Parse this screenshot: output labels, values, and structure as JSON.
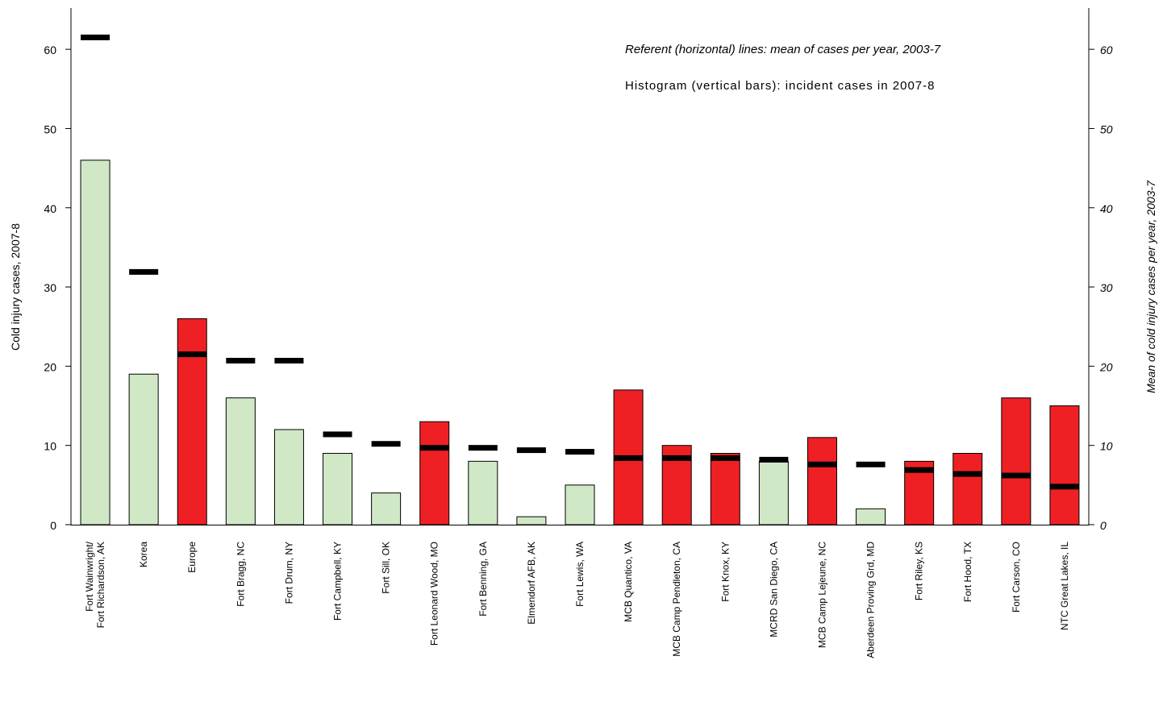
{
  "chart_data": {
    "type": "bar",
    "annotations": [
      "Referent (horizontal) lines: mean of cases per year, 2003-7",
      "Histogram (vertical bars): incident cases in 2007-8"
    ],
    "ylabel": "Cold injury cases, 2007-8",
    "y2label": "Mean of cold injury cases per year, 2003-7",
    "categories": [
      "Fort Wainwright/\nFort Richardson, AK",
      "Korea",
      "Europe",
      "Fort Bragg, NC",
      "Fort Drum, NY",
      "Fort Campbell, KY",
      "Fort Sill, OK",
      "Fort Leonard Wood, MO",
      "Fort Benning, GA",
      "Elmendorf AFB, AK",
      "Fort Lewis, WA",
      "MCB Quantico, VA",
      "MCB Camp Pendleton, CA",
      "Fort Knox, KY",
      "MCRD San Diego, CA",
      "MCB Camp Lejeune, NC",
      "Aberdeen Proving Grd, MD",
      "Fort Riley, KS",
      "Fort Hood, TX",
      "Fort Carson, CO",
      "NTC Great Lakes, IL"
    ],
    "series": [
      {
        "values": [
          46,
          19,
          26,
          16,
          12,
          9,
          4,
          13,
          8,
          1,
          5,
          17,
          10,
          9,
          8,
          11,
          2,
          8,
          9,
          16,
          15
        ],
        "colors": [
          "#d1e8c7",
          "#d1e8c7",
          "#ee2024",
          "#d1e8c7",
          "#d1e8c7",
          "#d1e8c7",
          "#d1e8c7",
          "#ee2024",
          "#d1e8c7",
          "#d1e8c7",
          "#d1e8c7",
          "#ee2024",
          "#ee2024",
          "#ee2024",
          "#d1e8c7",
          "#ee2024",
          "#d1e8c7",
          "#ee2024",
          "#ee2024",
          "#ee2024",
          "#ee2024"
        ]
      },
      {
        "axis": "y2",
        "color": "#000000",
        "values": [
          61.5,
          31.9,
          21.5,
          20.7,
          20.7,
          11.4,
          10.2,
          9.7,
          9.7,
          9.4,
          9.2,
          8.4,
          8.4,
          8.4,
          8.2,
          7.6,
          7.6,
          6.9,
          6.4,
          6.2,
          4.8
        ]
      }
    ],
    "ylim": [
      0,
      65
    ],
    "yticks": [
      0,
      10,
      20,
      30,
      40,
      50,
      60
    ],
    "y2lim": [
      0,
      65
    ],
    "y2ticks": [
      0,
      10,
      20,
      30,
      40,
      50,
      60
    ]
  }
}
